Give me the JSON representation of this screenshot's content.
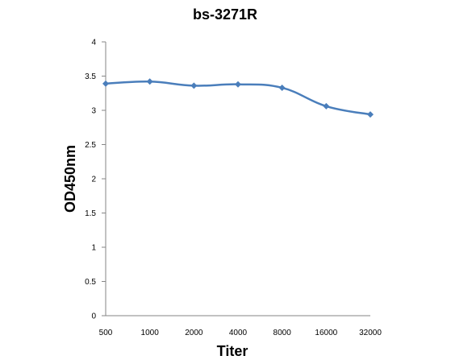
{
  "chart_data": {
    "type": "line",
    "title": "bs-3271R",
    "xlabel": "Titer",
    "ylabel": "OD450nm",
    "categories": [
      "500",
      "1000",
      "2000",
      "4000",
      "8000",
      "16000",
      "32000"
    ],
    "series": [
      {
        "values": [
          3.39,
          3.42,
          3.36,
          3.38,
          3.33,
          3.06,
          2.94
        ],
        "color": "#4a7ebb",
        "marker": "diamond"
      }
    ],
    "ylim": [
      0,
      4
    ],
    "yticks": [
      "0",
      "0.5",
      "1",
      "1.5",
      "2",
      "2.5",
      "3",
      "3.5",
      "4"
    ],
    "grid": false,
    "legend": "none",
    "axis_color": "#868686"
  }
}
